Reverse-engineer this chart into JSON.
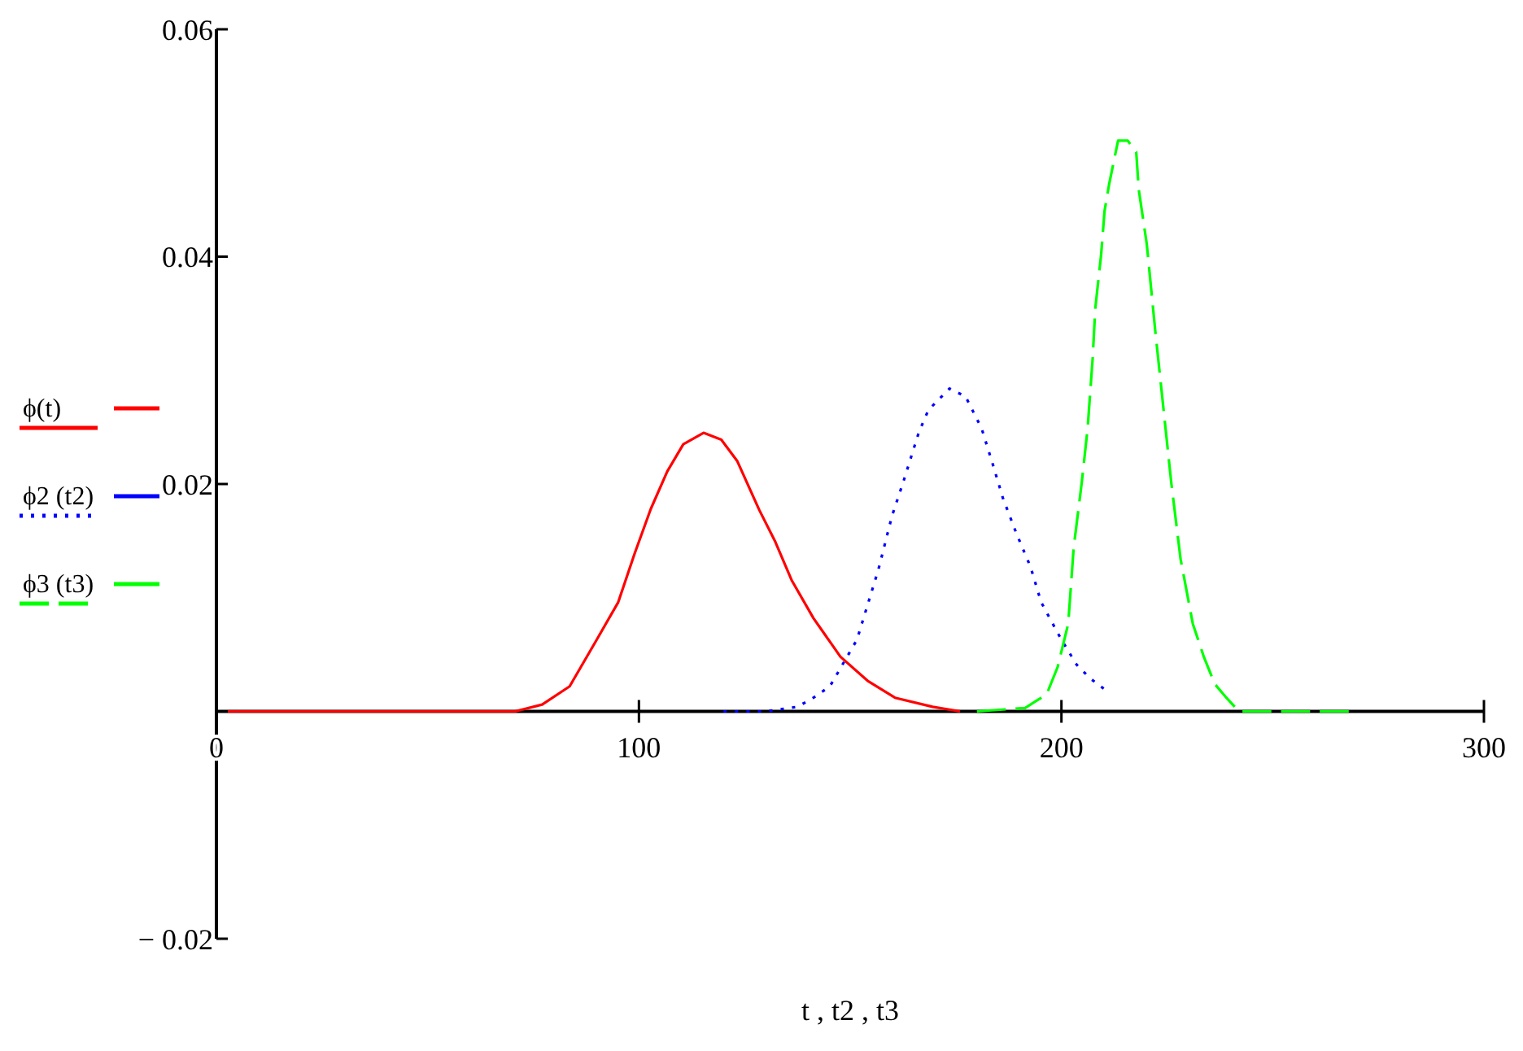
{
  "chart_data": {
    "type": "line",
    "xlabel": "t , t2 , t3",
    "xlim": [
      0,
      300
    ],
    "xticks": [
      0,
      100,
      200,
      300
    ],
    "ylim": [
      -0.02,
      0.06
    ],
    "yticks": [
      {
        "value": -0.02,
        "label": "− 0.02"
      },
      {
        "value": 0,
        "label": null
      },
      0.02,
      0.04,
      0.06
    ],
    "grid": false,
    "legend": "left",
    "marker": "none",
    "series": [
      {
        "name": "ϕ(t)",
        "color": "#ff0000",
        "line_style": "solid",
        "x": [
          0,
          70.7,
          77.1,
          83.6,
          90,
          95.1,
          99,
          102.8,
          106.7,
          110.5,
          115.3,
          119.5,
          123.3,
          128.5,
          132.3,
          136.2,
          141.3,
          147.7,
          154.1,
          160.6,
          169.5,
          176
        ],
        "values": [
          0,
          0,
          0.0006,
          0.0022,
          0.0063,
          0.0096,
          0.0139,
          0.0178,
          0.0211,
          0.0235,
          0.0245,
          0.0239,
          0.022,
          0.0177,
          0.0149,
          0.0115,
          0.0082,
          0.0048,
          0.0027,
          0.0012,
          0.0004,
          0
        ]
      },
      {
        "name": "ϕ2 (t2)",
        "color": "#0000ff",
        "line_style": "dotted",
        "x": [
          120,
          130,
          137.5,
          141.3,
          145.2,
          151.6,
          156.7,
          159.9,
          162.5,
          166.3,
          168.5,
          173.5,
          177.3,
          181.1,
          183.7,
          186.2,
          189.4,
          192.7,
          195.2,
          199.7,
          203.6,
          206.8,
          210
        ],
        "values": [
          0,
          0,
          0.0004,
          0.0012,
          0.0022,
          0.0063,
          0.0125,
          0.0172,
          0.0201,
          0.0246,
          0.0265,
          0.0284,
          0.0277,
          0.0249,
          0.0218,
          0.0187,
          0.0156,
          0.0127,
          0.0096,
          0.0065,
          0.0041,
          0.0029,
          0.002
        ]
      },
      {
        "name": "ϕ3 (t3)",
        "color": "#00ff00",
        "line_style": "dashed",
        "x": [
          180,
          191.4,
          196.5,
          199.1,
          201.6,
          202.9,
          204.8,
          206.2,
          207.4,
          208,
          209.4,
          210.2,
          211.3,
          213.4,
          215.7,
          217.7,
          218.3,
          220.2,
          222.2,
          224.1,
          226,
          228.2,
          231.1,
          233.7,
          236.3,
          238.8,
          242,
          268
        ],
        "values": [
          0,
          0.0003,
          0.0015,
          0.0039,
          0.0077,
          0.0144,
          0.0201,
          0.0249,
          0.0311,
          0.0354,
          0.0402,
          0.044,
          0.0464,
          0.0502,
          0.0502,
          0.0492,
          0.0459,
          0.0411,
          0.0335,
          0.0268,
          0.0201,
          0.0134,
          0.0077,
          0.0048,
          0.0024,
          0.0013,
          0,
          0
        ]
      }
    ]
  }
}
